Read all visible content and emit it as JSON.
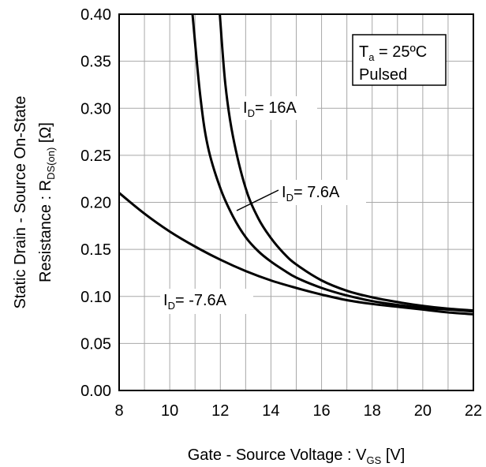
{
  "chart_data": {
    "type": "line",
    "title": "",
    "xlabel": {
      "main": "Gate - Source Voltage : V",
      "sub": "GS",
      "unit": " [V]"
    },
    "ylabel": {
      "line1": "Static Drain - Source On-State",
      "line2_main": "Resistance : R",
      "line2_sub": "DS(on)",
      "line2_unit": " [Ω]"
    },
    "xlim": [
      8,
      22
    ],
    "ylim": [
      0.0,
      0.4
    ],
    "xticks": [
      "8",
      "10",
      "12",
      "14",
      "16",
      "18",
      "20",
      "22"
    ],
    "yticks": [
      "0.00",
      "0.05",
      "0.10",
      "0.15",
      "0.20",
      "0.25",
      "0.30",
      "0.35",
      "0.40"
    ],
    "grid": true,
    "series": [
      {
        "name": "I_D= 16A",
        "label_main": "I",
        "label_sub": "D",
        "label_rest": "= 16A",
        "color": "#000000",
        "x": [
          11.98,
          12.2,
          12.5,
          13.0,
          13.5,
          14.0,
          14.5,
          15.0,
          16.0,
          17.0,
          18.0,
          19.0,
          20.0,
          21.0,
          22.0
        ],
        "y": [
          0.4,
          0.325,
          0.27,
          0.215,
          0.183,
          0.162,
          0.146,
          0.134,
          0.117,
          0.106,
          0.099,
          0.094,
          0.09,
          0.087,
          0.085
        ]
      },
      {
        "name": "I_D= 7.6A",
        "label_main": "I",
        "label_sub": "D",
        "label_rest": "= 7.6A",
        "color": "#000000",
        "x": [
          10.9,
          11.2,
          11.5,
          12.0,
          12.5,
          13.0,
          13.5,
          14.0,
          14.5,
          15.0,
          16.0,
          17.0,
          18.0,
          19.0,
          20.0,
          21.0,
          22.0
        ],
        "y": [
          0.4,
          0.315,
          0.26,
          0.215,
          0.185,
          0.163,
          0.148,
          0.137,
          0.128,
          0.12,
          0.109,
          0.101,
          0.095,
          0.091,
          0.088,
          0.086,
          0.084
        ]
      },
      {
        "name": "I_D= -7.6A",
        "label_main": "I",
        "label_sub": "D",
        "label_rest": "= -7.6A",
        "color": "#000000",
        "x": [
          8,
          9,
          10,
          11,
          12,
          13,
          14,
          15,
          16,
          17,
          18,
          19,
          20,
          21,
          22
        ],
        "y": [
          0.21,
          0.188,
          0.169,
          0.153,
          0.139,
          0.127,
          0.117,
          0.109,
          0.102,
          0.096,
          0.092,
          0.089,
          0.086,
          0.083,
          0.081
        ]
      }
    ],
    "conditions": {
      "temp_main": "T",
      "temp_sub": "a",
      "temp_rest": " = 25ºC",
      "mode": "Pulsed"
    }
  }
}
